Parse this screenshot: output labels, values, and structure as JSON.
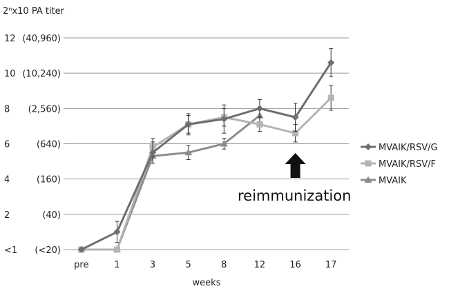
{
  "chart_data": {
    "type": "line",
    "ylabel": "2ⁿx10 PA titer",
    "xlabel": "weeks",
    "categories": [
      "pre",
      "1",
      "3",
      "5",
      "8",
      "12",
      "16",
      "17"
    ],
    "ylim": [
      0,
      12
    ],
    "y_ticks": [
      {
        "value": 0,
        "label": "<1",
        "titer": "(<20)"
      },
      {
        "value": 2,
        "label": "2",
        "titer": "(40)"
      },
      {
        "value": 4,
        "label": "4",
        "titer": "(160)"
      },
      {
        "value": 6,
        "label": "6",
        "titer": "(640)"
      },
      {
        "value": 8,
        "label": "8",
        "titer": "(2,560)"
      },
      {
        "value": 10,
        "label": "10",
        "titer": "(10,240)"
      },
      {
        "value": 12,
        "label": "12",
        "titer": "(40,960)"
      }
    ],
    "grid": "horizontal",
    "legend_position": "right",
    "series": [
      {
        "name": "MVAIK/RSV/G",
        "marker": "diamond",
        "color": "#6e6e6e",
        "values": [
          0.0,
          1.0,
          5.5,
          7.1,
          7.4,
          8.0,
          7.5,
          10.6
        ],
        "errors": [
          0.0,
          0.6,
          0.6,
          0.6,
          0.8,
          0.5,
          0.8,
          0.8
        ]
      },
      {
        "name": "MVAIK/RSV/F",
        "marker": "square",
        "color": "#b4b4b4",
        "values": [
          0.0,
          0.0,
          5.8,
          7.1,
          7.5,
          7.1,
          6.6,
          8.6
        ],
        "errors": [
          0.0,
          0.0,
          0.5,
          0.5,
          0.5,
          0.4,
          0.5,
          0.7
        ]
      },
      {
        "name": "MVAIK",
        "marker": "triangle",
        "color": "#8c8c8c",
        "values": [
          0.0,
          0.0,
          5.3,
          5.5,
          6.0,
          7.6,
          null,
          null
        ],
        "errors": [
          0.0,
          0.0,
          0.4,
          0.4,
          0.3,
          0.4,
          null,
          null
        ]
      }
    ],
    "annotations": [
      {
        "text": "reimmunization",
        "arrow": "up",
        "at_category": "16"
      }
    ]
  }
}
